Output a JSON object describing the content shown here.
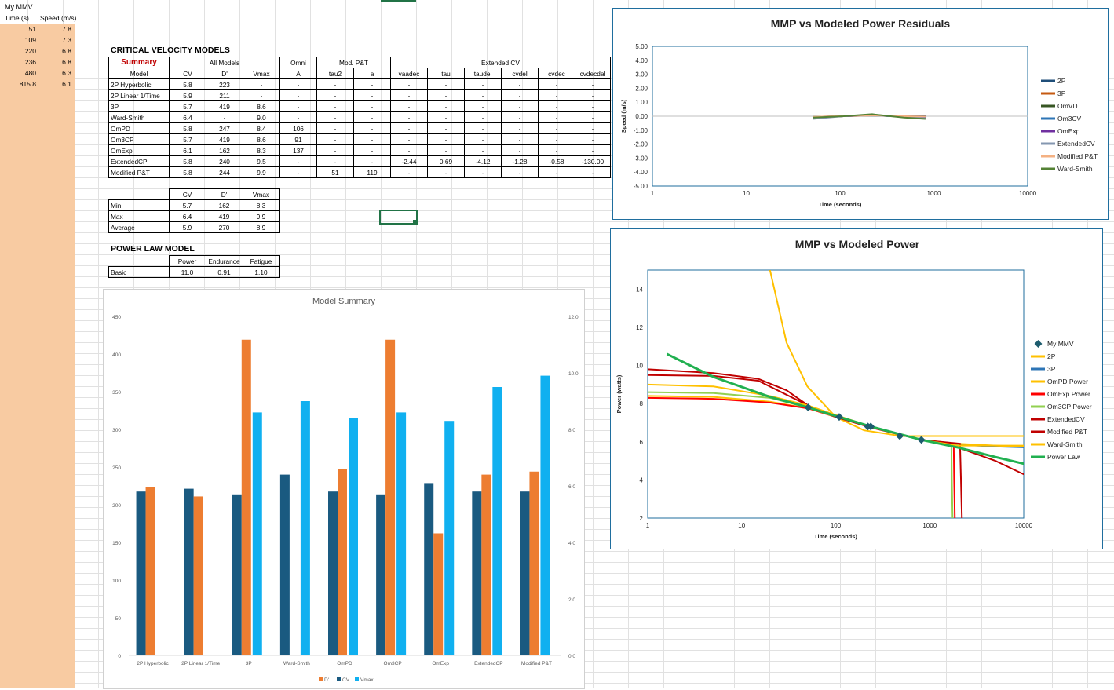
{
  "sheet": {
    "mmv_title": "My MMV",
    "mmv_headers": [
      "Time (s)",
      "Speed (m/s)"
    ],
    "mmv_rows": [
      [
        "51",
        "7.8"
      ],
      [
        "109",
        "7.3"
      ],
      [
        "220",
        "6.8"
      ],
      [
        "236",
        "6.8"
      ],
      [
        "480",
        "6.3"
      ],
      [
        "815.8",
        "6.1"
      ]
    ],
    "cv_title": "CRITICAL VELOCITY MODELS",
    "summary_label": "Summary",
    "group_headers": {
      "all": "All Models",
      "omni": "Omni",
      "mpt": "Mod. P&T",
      "ext": "Extended CV"
    },
    "col_headers": [
      "Model",
      "CV",
      "D'",
      "Vmax",
      "A",
      "tau2",
      "a",
      "vaadec",
      "tau",
      "taudel",
      "cvdel",
      "cvdec",
      "cvdecdal"
    ],
    "rows": [
      [
        "2P Hyperbolic",
        "5.8",
        "223",
        "-",
        "-",
        "-",
        "-",
        "-",
        "-",
        "-",
        "-",
        "-",
        "-"
      ],
      [
        "2P Linear 1/Time",
        "5.9",
        "211",
        "-",
        "-",
        "-",
        "-",
        "-",
        "-",
        "-",
        "-",
        "-",
        "-"
      ],
      [
        "3P",
        "5.7",
        "419",
        "8.6",
        "-",
        "-",
        "-",
        "-",
        "-",
        "-",
        "-",
        "-",
        "-"
      ],
      [
        "Ward-Smith",
        "6.4",
        "-",
        "9.0",
        "-",
        "-",
        "-",
        "-",
        "-",
        "-",
        "-",
        "-",
        "-"
      ],
      [
        "OmPD",
        "5.8",
        "247",
        "8.4",
        "106",
        "-",
        "-",
        "-",
        "-",
        "-",
        "-",
        "-",
        "-"
      ],
      [
        "Om3CP",
        "5.7",
        "419",
        "8.6",
        "91",
        "-",
        "-",
        "-",
        "-",
        "-",
        "-",
        "-",
        "-"
      ],
      [
        "OmExp",
        "6.1",
        "162",
        "8.3",
        "137",
        "-",
        "-",
        "-",
        "-",
        "-",
        "-",
        "-",
        "-"
      ],
      [
        "ExtendedCP",
        "5.8",
        "240",
        "9.5",
        "-",
        "-",
        "-",
        "-2.44",
        "0.69",
        "-4.12",
        "-1.28",
        "-0.58",
        "-130.00"
      ],
      [
        "Modified P&T",
        "5.8",
        "244",
        "9.9",
        "-",
        "51",
        "119",
        "-",
        "-",
        "-",
        "-",
        "-",
        "-"
      ]
    ],
    "stats_headers": [
      "CV",
      "D'",
      "Vmax"
    ],
    "stats_rows": [
      [
        "Min",
        "5.7",
        "162",
        "8.3"
      ],
      [
        "Max",
        "6.4",
        "419",
        "9.9"
      ],
      [
        "Average",
        "5.9",
        "270",
        "8.9"
      ]
    ],
    "power_title": "POWER LAW MODEL",
    "power_headers": [
      "Power",
      "Endurance",
      "Fatigue"
    ],
    "power_row": [
      "Basic",
      "11.0",
      "0.91",
      "1.10"
    ]
  },
  "chart_data": [
    {
      "type": "bar",
      "title": "Model Summary",
      "categories": [
        "2P Hyperbolic",
        "2P Linear 1/Time",
        "3P",
        "Ward-Smith",
        "OmPD",
        "Om3CP",
        "OmExp",
        "ExtendedCP",
        "Modified P&T"
      ],
      "series": [
        {
          "name": "D'",
          "axis": "left",
          "color": "#ed7d31",
          "values": [
            223,
            211,
            419,
            null,
            247,
            419,
            162,
            240,
            244
          ]
        },
        {
          "name": "CV",
          "axis": "right",
          "color": "#1a5a80",
          "values": [
            5.8,
            5.9,
            5.7,
            6.4,
            5.8,
            5.7,
            6.1,
            5.8,
            5.8
          ]
        },
        {
          "name": "Vmax",
          "axis": "right",
          "color": "#10b0f0",
          "values": [
            null,
            null,
            8.6,
            9.0,
            8.4,
            8.6,
            8.3,
            9.5,
            9.9
          ]
        }
      ],
      "y_left": {
        "min": 0,
        "max": 450,
        "ticks": [
          0,
          50,
          100,
          150,
          200,
          250,
          300,
          350,
          400,
          450
        ]
      },
      "y_right": {
        "min": 0,
        "max": 12,
        "ticks": [
          "0.0",
          "2.0",
          "4.0",
          "6.0",
          "8.0",
          "10.0",
          "12.0"
        ]
      },
      "legend": "bottom"
    },
    {
      "type": "line",
      "title": "MMP vs Modeled Power Residuals",
      "xlabel": "Time (seconds)",
      "ylabel": "Speed (m/s)",
      "x_scale": "log",
      "x_ticks": [
        "1",
        "10",
        "100",
        "1000",
        "10000"
      ],
      "y_ticks": [
        "5.00",
        "4.00",
        "3.00",
        "2.00",
        "1.00",
        "0.00",
        "-1.00",
        "-2.00",
        "-3.00",
        "-4.00",
        "-5.00"
      ],
      "ylim": [
        -5,
        5
      ],
      "x": [
        51,
        109,
        220,
        236,
        480,
        815.8
      ],
      "series": [
        {
          "name": "2P",
          "color": "#1f4e79",
          "values": [
            -0.05,
            0.0,
            0.05,
            0.04,
            0.0,
            0.02
          ]
        },
        {
          "name": "3P",
          "color": "#c55a11",
          "values": [
            -0.1,
            0.0,
            0.05,
            0.05,
            -0.02,
            -0.05
          ]
        },
        {
          "name": "OmVD",
          "color": "#375623",
          "values": [
            -0.05,
            0.02,
            0.06,
            0.05,
            -0.03,
            -0.1
          ]
        },
        {
          "name": "Om3CV",
          "color": "#2e75b6",
          "values": [
            -0.08,
            0.01,
            0.05,
            0.04,
            -0.03,
            -0.08
          ]
        },
        {
          "name": "OmExp",
          "color": "#7030a0",
          "values": [
            -0.1,
            0.0,
            0.08,
            0.07,
            -0.02,
            -0.1
          ]
        },
        {
          "name": "ExtendedCV",
          "color": "#8497b0",
          "values": [
            -0.2,
            0.0,
            0.1,
            0.09,
            -0.05,
            -0.15
          ]
        },
        {
          "name": "Modified P&T",
          "color": "#f4b183",
          "values": [
            -0.05,
            0.02,
            0.05,
            0.05,
            0.0,
            -0.02
          ]
        },
        {
          "name": "Ward-Smith",
          "color": "#548235",
          "values": [
            -0.1,
            0.0,
            0.15,
            0.12,
            -0.1,
            -0.2
          ]
        }
      ],
      "legend": "right"
    },
    {
      "type": "line",
      "title": "MMP vs Modeled Power",
      "xlabel": "Time (seconds)",
      "ylabel": "Power (watts)",
      "x_scale": "log",
      "x_ticks": [
        "1",
        "10",
        "100",
        "1000",
        "10000"
      ],
      "y_ticks": [
        "2",
        "4",
        "6",
        "8",
        "10",
        "12",
        "14"
      ],
      "ylim": [
        2,
        15
      ],
      "points": {
        "name": "My MMV",
        "color": "#1d5c6e",
        "x": [
          51,
          109,
          220,
          236,
          480,
          815.8
        ],
        "y": [
          7.8,
          7.3,
          6.8,
          6.8,
          6.3,
          6.1
        ]
      },
      "series": [
        {
          "name": "2P",
          "color": "#ffc000",
          "x": [
            20,
            30,
            50,
            100,
            200,
            500,
            1000,
            2000,
            5000,
            11000
          ],
          "y": [
            15,
            11.2,
            8.9,
            7.3,
            6.6,
            6.3,
            6.3,
            6.3,
            6.3,
            6.3
          ]
        },
        {
          "name": "3P",
          "color": "#2e75b6",
          "x": [
            1000,
            2000,
            5000,
            11000
          ],
          "y": [
            6.0,
            5.85,
            5.75,
            5.7
          ]
        },
        {
          "name": "OmPD Power",
          "color": "#ffc000",
          "x": [
            1,
            5,
            20,
            51,
            100,
            236,
            815.8,
            2000,
            5000,
            11000
          ],
          "y": [
            8.4,
            8.35,
            8.1,
            7.75,
            7.3,
            6.8,
            6.1,
            5.9,
            5.8,
            5.75
          ]
        },
        {
          "name": "OmExp Power",
          "color": "#ff0000",
          "x": [
            1,
            5,
            20,
            51,
            100,
            236,
            815.8,
            1800,
            1820,
            1850
          ],
          "y": [
            8.3,
            8.25,
            8.05,
            7.75,
            7.3,
            6.8,
            6.1,
            5.9,
            4,
            2
          ]
        },
        {
          "name": "Om3CP Power",
          "color": "#92d050",
          "x": [
            1,
            5,
            20,
            51,
            100,
            236,
            815.8,
            1700,
            1720,
            1750
          ],
          "y": [
            8.6,
            8.55,
            8.3,
            7.8,
            7.3,
            6.8,
            6.1,
            5.9,
            4,
            2
          ]
        },
        {
          "name": "ExtendedCV",
          "color": "#c00000",
          "x": [
            1,
            5,
            15,
            30,
            51,
            100,
            236,
            815.8,
            2100,
            2150,
            2200
          ],
          "y": [
            9.8,
            9.6,
            9.3,
            8.7,
            7.9,
            7.3,
            6.8,
            6.1,
            5.9,
            4,
            2
          ]
        },
        {
          "name": "Modified P&T",
          "color": "#c00000",
          "x": [
            1,
            5,
            15,
            51,
            100,
            236,
            815.8,
            2000,
            5000,
            11000
          ],
          "y": [
            9.5,
            9.45,
            9.2,
            7.9,
            7.3,
            6.75,
            6.1,
            5.7,
            5.0,
            4.2
          ]
        },
        {
          "name": "Ward-Smith",
          "color": "#ffc000",
          "x": [
            1,
            5,
            20,
            51,
            100,
            236,
            815.8,
            2000,
            5000,
            11000
          ],
          "y": [
            9.0,
            8.9,
            8.4,
            7.9,
            7.4,
            6.8,
            6.1,
            5.8,
            5.8,
            5.8
          ]
        },
        {
          "name": "Power Law",
          "color": "#21b050",
          "x": [
            1.6,
            5,
            20,
            51,
            100,
            236,
            815.8,
            2000,
            5000,
            11000
          ],
          "y": [
            10.6,
            9.4,
            8.35,
            7.8,
            7.35,
            6.8,
            6.1,
            5.7,
            5.2,
            4.8
          ]
        }
      ],
      "legend": "right"
    }
  ]
}
